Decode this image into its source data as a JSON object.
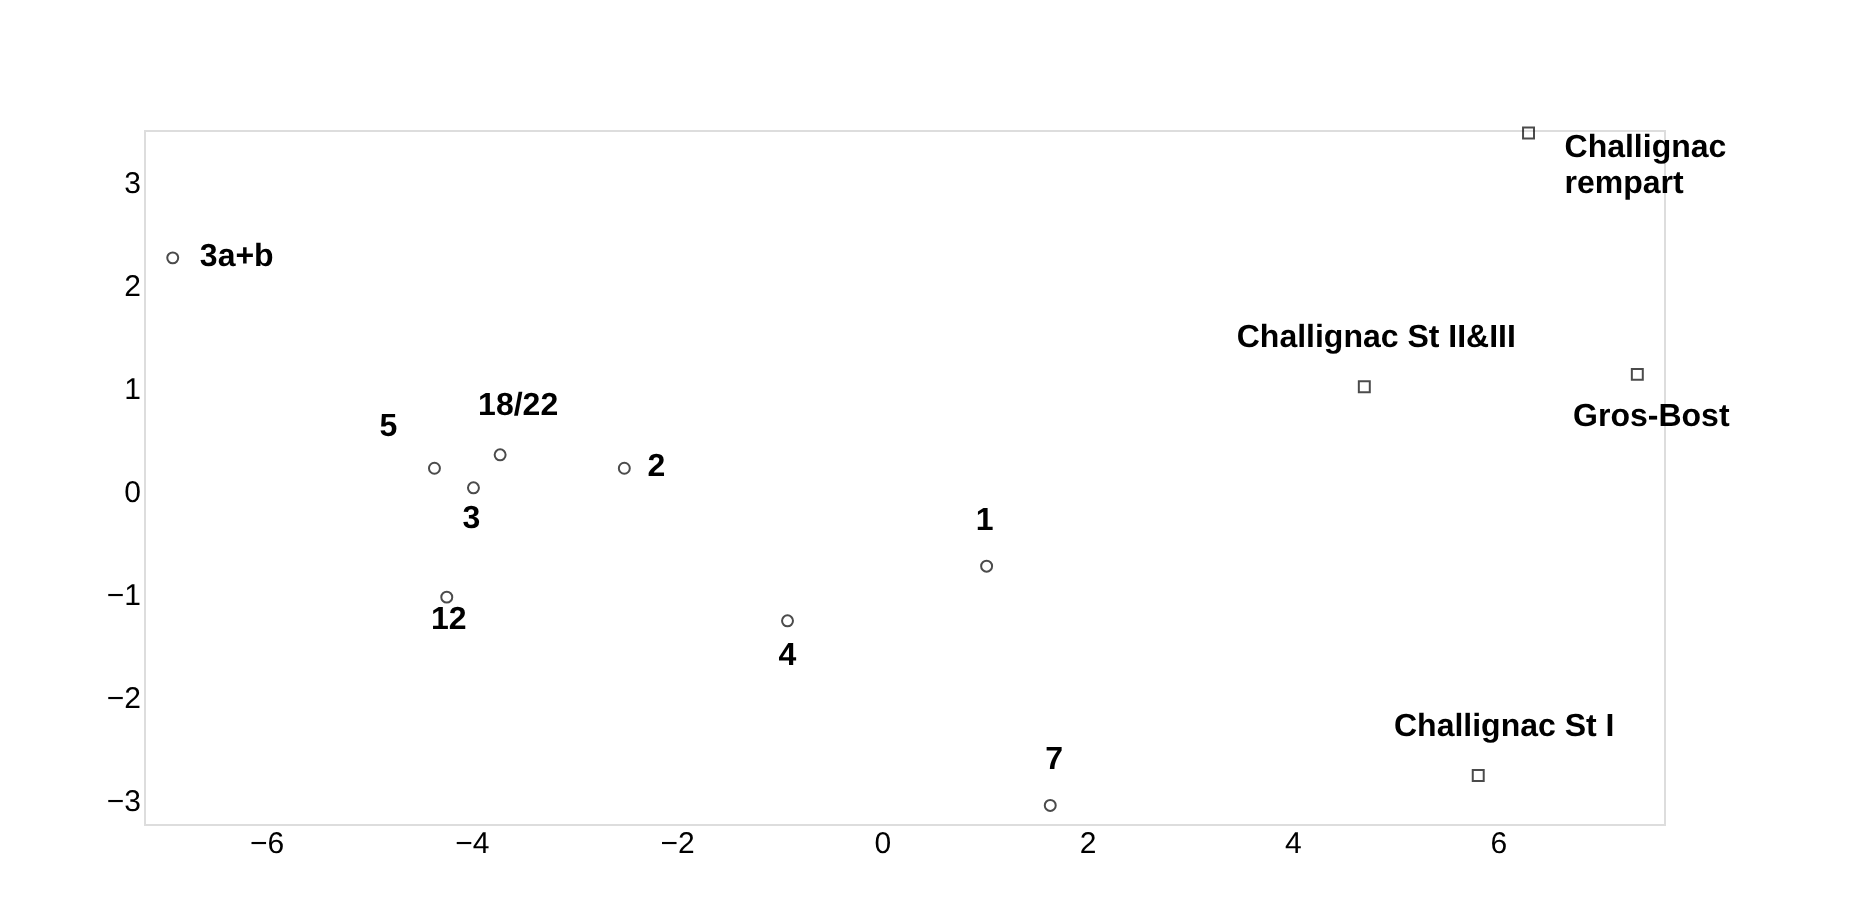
{
  "chart_data": {
    "type": "scatter",
    "xlim": [
      -7.19,
      7.62
    ],
    "ylim": [
      -3.23,
      3.5
    ],
    "xticks": [
      -6,
      -4,
      -2,
      0,
      2,
      4,
      6
    ],
    "yticks": [
      -3,
      -2,
      -1,
      0,
      1,
      2,
      3
    ],
    "grid": false,
    "series": [
      {
        "color": "#000000",
        "marker": "circle",
        "x": [
          -6.91,
          -4.36,
          -3.72,
          -3.98,
          -2.51,
          -4.24,
          -0.92,
          1.02,
          1.64
        ],
        "values": [
          2.26,
          0.22,
          0.35,
          0.03,
          0.22,
          -1.03,
          -1.26,
          -0.73,
          -3.05
        ]
      },
      {
        "color": "#000000",
        "marker": "square",
        "x": [
          6.3,
          4.7,
          7.36,
          5.81
        ],
        "values": [
          3.47,
          1.01,
          1.13,
          -2.76
        ]
      }
    ],
    "annotations": [
      {
        "text": "3a+b",
        "x": -6.91,
        "y": 2.26
      },
      {
        "text": "5",
        "x": -4.36,
        "y": 0.22
      },
      {
        "text": "18/22",
        "x": -3.72,
        "y": 0.35
      },
      {
        "text": "3",
        "x": -3.98,
        "y": 0.03
      },
      {
        "text": "2",
        "x": -2.51,
        "y": 0.22
      },
      {
        "text": "12",
        "x": -4.24,
        "y": -1.03
      },
      {
        "text": "4",
        "x": -0.92,
        "y": -1.26
      },
      {
        "text": "1",
        "x": 1.02,
        "y": -0.73
      },
      {
        "text": "7",
        "x": 1.64,
        "y": -3.05
      },
      {
        "text": "Challignac\nrempart",
        "x": 6.3,
        "y": 3.47
      },
      {
        "text": "Challignac St II&III",
        "x": 4.7,
        "y": 1.01
      },
      {
        "text": "Gros-Bost",
        "x": 7.36,
        "y": 1.13
      },
      {
        "text": "Challignac St I",
        "x": 5.81,
        "y": -2.76
      }
    ]
  }
}
